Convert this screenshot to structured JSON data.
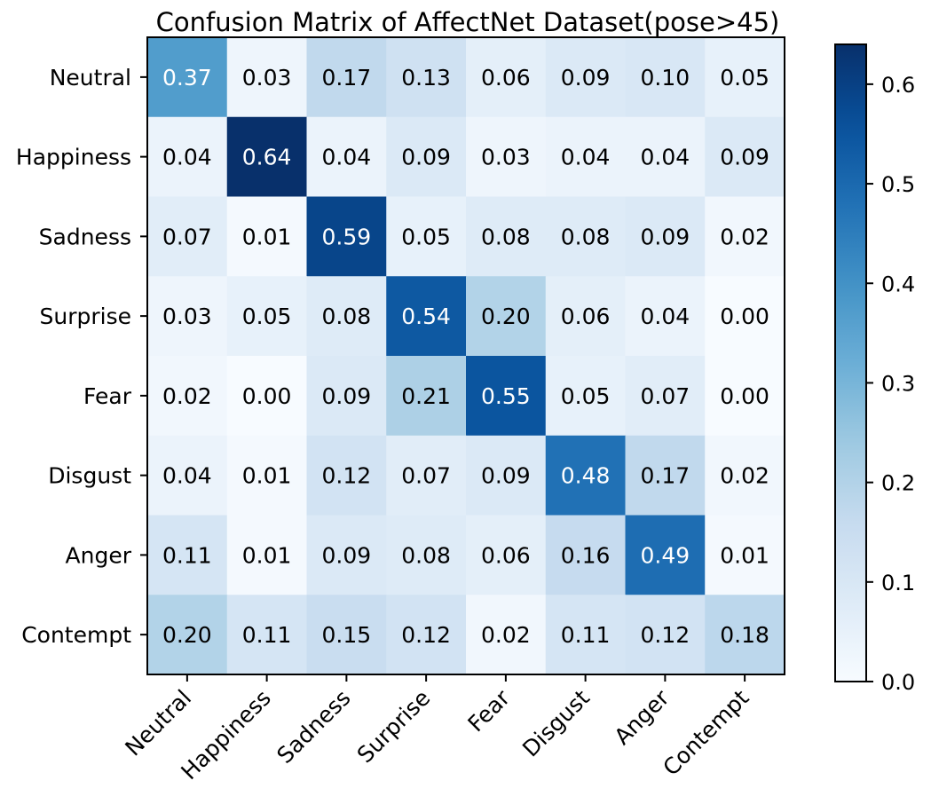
{
  "chart_data": {
    "type": "heatmap",
    "title": "Confusion Matrix of AffectNet Dataset(pose>45)",
    "row_labels": [
      "Neutral",
      "Happiness",
      "Sadness",
      "Surprise",
      "Fear",
      "Disgust",
      "Anger",
      "Contempt"
    ],
    "col_labels": [
      "Neutral",
      "Happiness",
      "Sadness",
      "Surprise",
      "Fear",
      "Disgust",
      "Anger",
      "Contempt"
    ],
    "values": [
      [
        0.37,
        0.03,
        0.17,
        0.13,
        0.06,
        0.09,
        0.1,
        0.05
      ],
      [
        0.04,
        0.64,
        0.04,
        0.09,
        0.03,
        0.04,
        0.04,
        0.09
      ],
      [
        0.07,
        0.01,
        0.59,
        0.05,
        0.08,
        0.08,
        0.09,
        0.02
      ],
      [
        0.03,
        0.05,
        0.08,
        0.54,
        0.2,
        0.06,
        0.04,
        0.0
      ],
      [
        0.02,
        0.0,
        0.09,
        0.21,
        0.55,
        0.05,
        0.07,
        0.0
      ],
      [
        0.04,
        0.01,
        0.12,
        0.07,
        0.09,
        0.48,
        0.17,
        0.02
      ],
      [
        0.11,
        0.01,
        0.09,
        0.08,
        0.06,
        0.16,
        0.49,
        0.01
      ],
      [
        0.2,
        0.11,
        0.15,
        0.12,
        0.02,
        0.11,
        0.12,
        0.18
      ]
    ],
    "value_format": "0.00",
    "colormap": "Blues",
    "colorbar": {
      "range": [
        0.0,
        0.64
      ],
      "ticks": [
        0.0,
        0.1,
        0.2,
        0.3,
        0.4,
        0.5,
        0.6
      ],
      "tick_labels": [
        "0.0",
        "0.1",
        "0.2",
        "0.3",
        "0.4",
        "0.5",
        "0.6"
      ]
    },
    "xlabel": "",
    "ylabel": "",
    "grid": false
  }
}
